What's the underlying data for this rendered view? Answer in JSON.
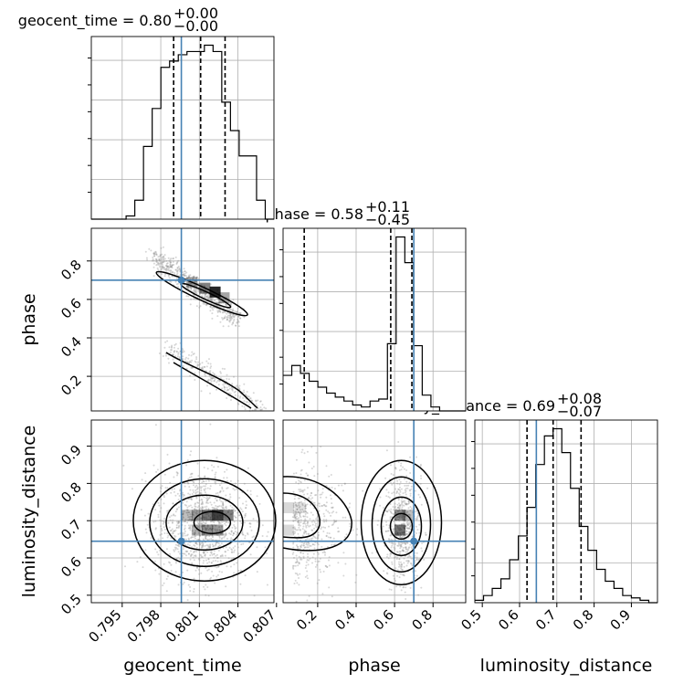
{
  "chart_data": {
    "type": "corner",
    "parameters": [
      "geocent_time",
      "phase",
      "luminosity_distance"
    ],
    "axis_labels": {
      "x": [
        "geocent_time",
        "phase",
        "luminosity_distance"
      ],
      "y": [
        "phase",
        "luminosity_distance"
      ]
    },
    "titles": [
      {
        "name": "geocent_time",
        "median": "0.80",
        "plus": "+0.00",
        "minus": "−0.00"
      },
      {
        "name": "phase",
        "median": "0.58",
        "plus": "+0.11",
        "minus": "−0.45"
      },
      {
        "name": "luminosity_distance",
        "median": "0.69",
        "plus": "+0.08",
        "minus": "−0.07"
      }
    ],
    "ranges": {
      "geocent_time": [
        0.7926,
        0.8068
      ],
      "phase": [
        0.02,
        0.97
      ],
      "luminosity_distance": [
        0.48,
        0.97
      ]
    },
    "ticks": {
      "geocent_time": [
        "0.795",
        "0.798",
        "0.801",
        "0.804",
        "0.807"
      ],
      "phase": [
        "0.2",
        "0.4",
        "0.6",
        "0.8"
      ],
      "luminosity_distance": [
        "0.5",
        "0.6",
        "0.7",
        "0.8",
        "0.9"
      ]
    },
    "truths": {
      "geocent_time": 0.7996,
      "phase": 0.7,
      "luminosity_distance": 0.645
    },
    "quantiles": {
      "geocent_time": [
        0.799,
        0.8011,
        0.803
      ],
      "phase": [
        0.13,
        0.58,
        0.69
      ],
      "luminosity_distance": [
        0.62,
        0.69,
        0.765
      ]
    },
    "histograms": {
      "geocent_time": {
        "bins": [
          0.7926,
          0.8068
        ],
        "counts": [
          0,
          0,
          0,
          0,
          1,
          6,
          23,
          35,
          48,
          50,
          52,
          53,
          53,
          55,
          53,
          37,
          28,
          20,
          20,
          6,
          0
        ]
      },
      "phase": {
        "bins": [
          0.02,
          0.97
        ],
        "counts": [
          18,
          23,
          19,
          15,
          12,
          9,
          7,
          5,
          3,
          2,
          5,
          6,
          34,
          88,
          75,
          33,
          8,
          2,
          0,
          0,
          0
        ]
      },
      "luminosity_distance": {
        "bins": [
          0.48,
          0.97
        ],
        "counts": [
          1,
          3,
          6,
          10,
          18,
          28,
          40,
          58,
          70,
          73,
          63,
          48,
          32,
          22,
          14,
          9,
          6,
          3,
          2,
          1,
          0
        ]
      }
    },
    "grid": true,
    "colors": {
      "truth": "#4682b4",
      "hist": "#000000",
      "points": "#8c8c8c"
    }
  }
}
